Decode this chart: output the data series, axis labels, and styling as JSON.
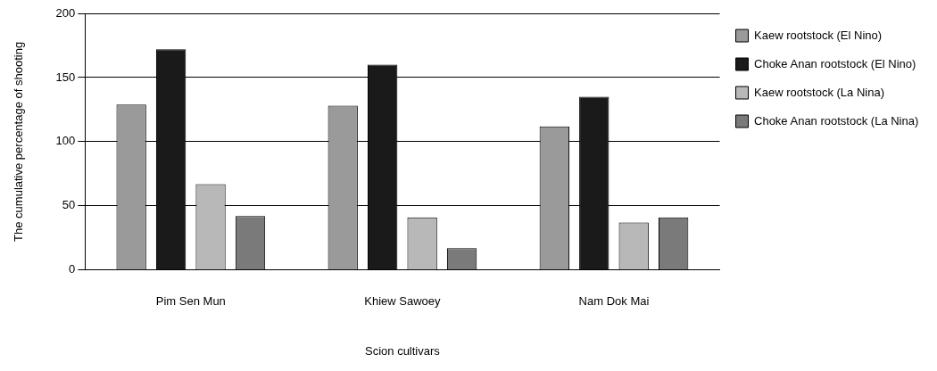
{
  "chart_data": {
    "type": "bar",
    "xlabel": "Scion cultivars",
    "ylabel": "The cumulative percentage of shooting",
    "categories": [
      "Pim Sen Mun",
      "Khiew Sawoey",
      "Nam Dok Mai"
    ],
    "series": [
      {
        "name": "Kaew rootstock (El Nino)",
        "color": "#9a9a9a",
        "values": [
          129,
          128,
          112
        ]
      },
      {
        "name": "Choke Anan rootstock (El Nino)",
        "color": "#1a1a1a",
        "values": [
          172,
          160,
          135
        ]
      },
      {
        "name": "Kaew rootstock (La Nina)",
        "color": "#b8b8b8",
        "values": [
          67,
          41,
          37
        ]
      },
      {
        "name": "Choke Anan rootstock (La Nina)",
        "color": "#7a7a7a",
        "values": [
          42,
          17,
          41
        ]
      }
    ],
    "ylim": [
      0,
      200
    ],
    "yticks": [
      0,
      50,
      100,
      150,
      200
    ],
    "grid": "y",
    "legend": "right"
  }
}
